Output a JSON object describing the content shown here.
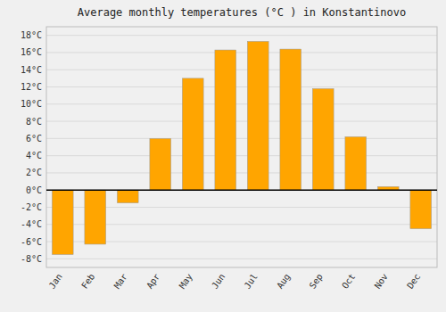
{
  "chart_data": {
    "type": "bar",
    "title": "Average monthly temperatures (°C ) in Konstantinovo",
    "categories": [
      "Jan",
      "Feb",
      "Mar",
      "Apr",
      "May",
      "Jun",
      "Jul",
      "Aug",
      "Sep",
      "Oct",
      "Nov",
      "Dec"
    ],
    "values": [
      -7.5,
      -6.3,
      -1.5,
      6.0,
      13.0,
      16.3,
      17.3,
      16.4,
      11.8,
      6.2,
      0.4,
      -4.5
    ],
    "color": "#FFA500",
    "ylim": [
      -9,
      19
    ],
    "yticks": [
      {
        "value": -8,
        "label": "-8°C"
      },
      {
        "value": -6,
        "label": "-6°C"
      },
      {
        "value": -4,
        "label": "-4°C"
      },
      {
        "value": -2,
        "label": "-2°C"
      },
      {
        "value": 0,
        "label": "0°C"
      },
      {
        "value": 2,
        "label": "2°C"
      },
      {
        "value": 4,
        "label": "4°C"
      },
      {
        "value": 6,
        "label": "6°C"
      },
      {
        "value": 8,
        "label": "8°C"
      },
      {
        "value": 10,
        "label": "10°C"
      },
      {
        "value": 12,
        "label": "12°C"
      },
      {
        "value": 14,
        "label": "14°C"
      },
      {
        "value": 16,
        "label": "16°C"
      },
      {
        "value": 18,
        "label": "18°C"
      }
    ],
    "grid": true
  }
}
